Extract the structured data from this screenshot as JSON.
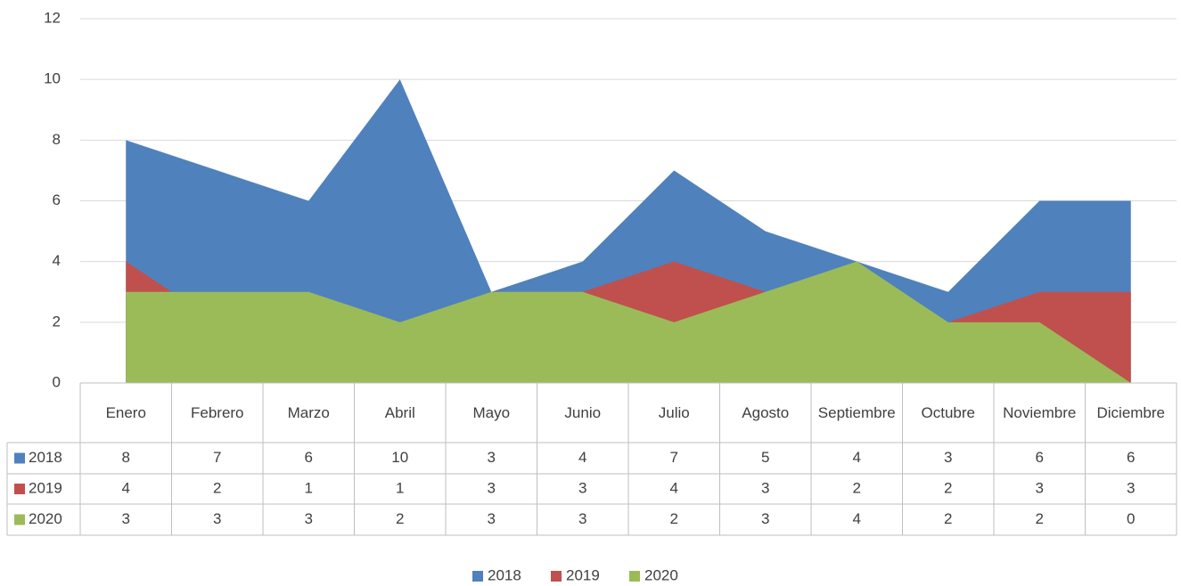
{
  "chart_data": {
    "type": "area",
    "categories": [
      "Enero",
      "Febrero",
      "Marzo",
      "Abril",
      "Mayo",
      "Junio",
      "Julio",
      "Agosto",
      "Septiembre",
      "Octubre",
      "Noviembre",
      "Diciembre"
    ],
    "series": [
      {
        "name": "2018",
        "color": "#4f81bd",
        "values": [
          8,
          7,
          6,
          10,
          3,
          4,
          7,
          5,
          4,
          3,
          6,
          6
        ]
      },
      {
        "name": "2019",
        "color": "#c0504d",
        "values": [
          4,
          2,
          1,
          1,
          3,
          3,
          4,
          3,
          2,
          2,
          3,
          3
        ]
      },
      {
        "name": "2020",
        "color": "#9bbb59",
        "values": [
          3,
          3,
          3,
          2,
          3,
          3,
          2,
          3,
          4,
          2,
          2,
          0
        ]
      }
    ],
    "ylim": [
      0,
      12
    ],
    "yticks": [
      0,
      2,
      4,
      6,
      8,
      10,
      12
    ],
    "grid": true,
    "legend": "bottom"
  }
}
